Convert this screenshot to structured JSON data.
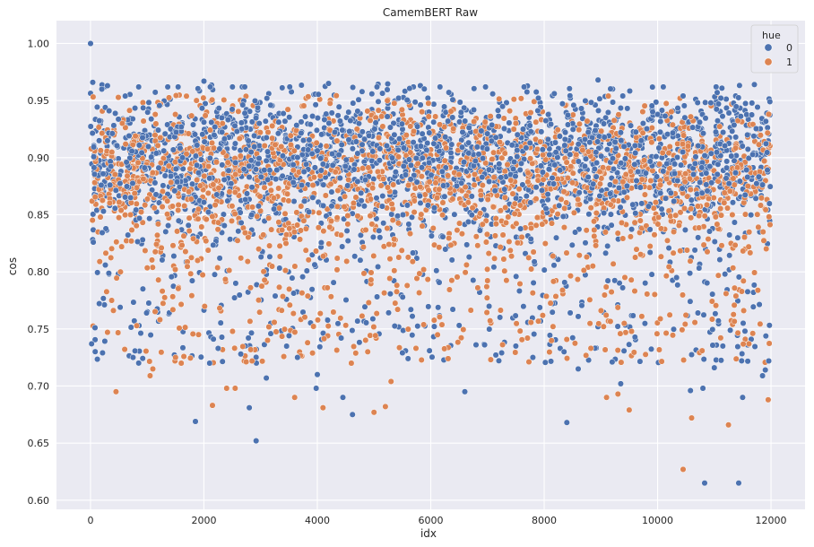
{
  "chart_data": {
    "type": "scatter",
    "title": "CamemBERT Raw",
    "xlabel": "idx",
    "ylabel": "cos",
    "xlim": [
      -600,
      12600
    ],
    "ylim": [
      0.592,
      1.02
    ],
    "xticks": [
      0,
      2000,
      4000,
      6000,
      8000,
      10000,
      12000
    ],
    "xtick_labels": [
      "0",
      "2000",
      "4000",
      "6000",
      "8000",
      "10000",
      "12000"
    ],
    "yticks": [
      0.6,
      0.65,
      0.7,
      0.75,
      0.8,
      0.85,
      0.9,
      0.95,
      1.0
    ],
    "ytick_labels": [
      "0.60",
      "0.65",
      "0.70",
      "0.75",
      "0.80",
      "0.85",
      "0.90",
      "0.95",
      "1.00"
    ],
    "grid": true,
    "background": "#EAEAF2",
    "legend": {
      "title": "hue",
      "placement": "top-right"
    },
    "series": [
      {
        "name": "0",
        "color": "#4C72B0",
        "bulk": {
          "x_range": [
            0,
            11990
          ],
          "typical_y_range": [
            0.72,
            0.965
          ],
          "density_peak_y": 0.9
        },
        "points": [
          [
            0,
            1.0
          ],
          [
            20,
            0.737
          ],
          [
            40,
            0.966
          ],
          [
            80,
            0.751
          ],
          [
            200,
            0.96
          ],
          [
            300,
            0.963
          ],
          [
            750,
            0.725
          ],
          [
            1850,
            0.669
          ],
          [
            2000,
            0.967
          ],
          [
            2100,
            0.72
          ],
          [
            2250,
            0.733
          ],
          [
            2650,
            0.728
          ],
          [
            2800,
            0.681
          ],
          [
            2920,
            0.652
          ],
          [
            3100,
            0.707
          ],
          [
            3500,
            0.744
          ],
          [
            3650,
            0.725
          ],
          [
            3980,
            0.698
          ],
          [
            4000,
            0.71
          ],
          [
            4420,
            0.742
          ],
          [
            4450,
            0.69
          ],
          [
            4620,
            0.675
          ],
          [
            5500,
            0.729
          ],
          [
            5600,
            0.724
          ],
          [
            6600,
            0.695
          ],
          [
            6950,
            0.736
          ],
          [
            7250,
            0.729
          ],
          [
            7500,
            0.735
          ],
          [
            7800,
            0.725
          ],
          [
            8350,
            0.73
          ],
          [
            8400,
            0.668
          ],
          [
            8600,
            0.715
          ],
          [
            8950,
            0.968
          ],
          [
            9200,
            0.721
          ],
          [
            9350,
            0.702
          ],
          [
            10450,
            0.954
          ],
          [
            10580,
            0.696
          ],
          [
            10800,
            0.698
          ],
          [
            10830,
            0.615
          ],
          [
            11000,
            0.716
          ],
          [
            11050,
            0.957
          ],
          [
            11150,
            0.735
          ],
          [
            11430,
            0.615
          ],
          [
            11500,
            0.69
          ],
          [
            11850,
            0.709
          ],
          [
            11900,
            0.714
          ],
          [
            11960,
            0.722
          ],
          [
            11980,
            0.949
          ]
        ]
      },
      {
        "name": "1",
        "color": "#DD8452",
        "bulk": {
          "x_range": [
            0,
            11990
          ],
          "typical_y_range": [
            0.72,
            0.955
          ],
          "density_peak_y": 0.89
        },
        "points": [
          [
            300,
            0.747
          ],
          [
            450,
            0.695
          ],
          [
            1050,
            0.709
          ],
          [
            1100,
            0.715
          ],
          [
            1500,
            0.725
          ],
          [
            1600,
            0.72
          ],
          [
            2150,
            0.683
          ],
          [
            2400,
            0.698
          ],
          [
            2550,
            0.698
          ],
          [
            2850,
            0.722
          ],
          [
            3600,
            0.69
          ],
          [
            4100,
            0.681
          ],
          [
            4600,
            0.72
          ],
          [
            5000,
            0.677
          ],
          [
            5200,
            0.682
          ],
          [
            5300,
            0.704
          ],
          [
            9100,
            0.69
          ],
          [
            9300,
            0.693
          ],
          [
            9500,
            0.679
          ],
          [
            10450,
            0.627
          ],
          [
            10600,
            0.672
          ],
          [
            11250,
            0.666
          ],
          [
            11950,
            0.688
          ],
          [
            11960,
            0.938
          ]
        ]
      }
    ]
  }
}
